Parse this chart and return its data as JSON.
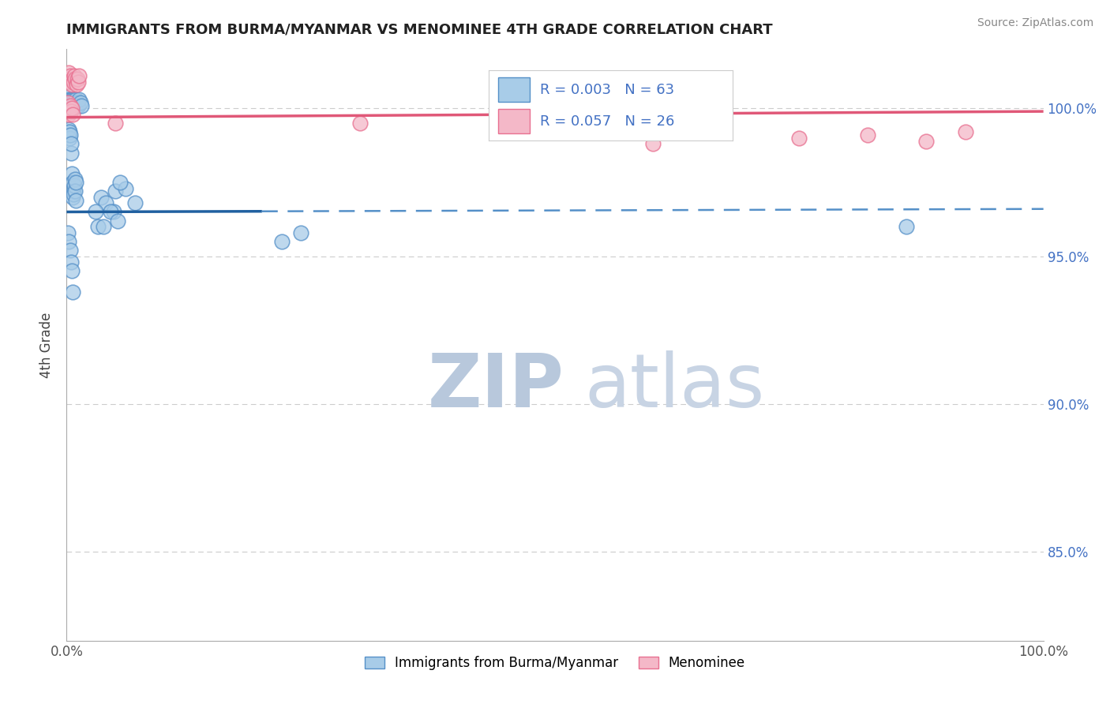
{
  "title": "IMMIGRANTS FROM BURMA/MYANMAR VS MENOMINEE 4TH GRADE CORRELATION CHART",
  "source": "Source: ZipAtlas.com",
  "ylabel": "4th Grade",
  "xlim": [
    0.0,
    100.0
  ],
  "ylim": [
    82.0,
    102.0
  ],
  "yticks": [
    85.0,
    90.0,
    95.0,
    100.0
  ],
  "blue_R": 0.003,
  "blue_N": 63,
  "pink_R": 0.057,
  "pink_N": 26,
  "blue_color": "#a8cce8",
  "pink_color": "#f4b8c8",
  "blue_edge_color": "#5590c8",
  "pink_edge_color": "#e87090",
  "blue_line_color": "#2060a0",
  "pink_line_color": "#e05878",
  "grid_color": "#cccccc",
  "background_color": "#ffffff",
  "blue_scatter_x": [
    0.1,
    0.15,
    0.2,
    0.25,
    0.3,
    0.35,
    0.4,
    0.45,
    0.5,
    0.55,
    0.6,
    0.65,
    0.7,
    0.75,
    0.8,
    0.85,
    0.9,
    0.95,
    1.0,
    1.1,
    1.2,
    1.3,
    1.4,
    1.5,
    0.12,
    0.18,
    0.22,
    0.28,
    0.32,
    0.38,
    0.42,
    0.48,
    0.52,
    0.58,
    0.62,
    0.68,
    0.72,
    0.78,
    0.82,
    0.88,
    0.92,
    0.98,
    3.5,
    5.0,
    4.0,
    3.0,
    6.0,
    3.2,
    4.8,
    0.15,
    0.25,
    0.35,
    0.45,
    0.55,
    0.65,
    5.5,
    4.5,
    7.0,
    5.2,
    3.8,
    22.0,
    24.0,
    86.0
  ],
  "blue_scatter_y": [
    100.2,
    100.3,
    100.4,
    100.1,
    100.3,
    100.2,
    100.1,
    100.3,
    100.2,
    100.1,
    100.2,
    100.3,
    100.1,
    100.2,
    100.3,
    100.1,
    100.2,
    100.3,
    100.1,
    100.2,
    100.1,
    100.3,
    100.2,
    100.1,
    99.2,
    99.1,
    99.3,
    99.0,
    99.2,
    99.1,
    98.5,
    98.8,
    97.8,
    97.5,
    97.0,
    97.2,
    97.1,
    97.4,
    97.6,
    97.2,
    96.9,
    97.5,
    97.0,
    97.2,
    96.8,
    96.5,
    97.3,
    96.0,
    96.5,
    95.8,
    95.5,
    95.2,
    94.8,
    94.5,
    93.8,
    97.5,
    96.5,
    96.8,
    96.2,
    96.0,
    95.5,
    95.8,
    96.0
  ],
  "pink_scatter_x": [
    0.1,
    0.2,
    0.3,
    0.4,
    0.5,
    0.6,
    0.7,
    0.8,
    0.9,
    1.0,
    1.1,
    1.2,
    1.3,
    0.15,
    0.25,
    0.35,
    0.45,
    0.55,
    0.65,
    5.0,
    30.0,
    60.0,
    75.0,
    82.0,
    88.0,
    92.0
  ],
  "pink_scatter_y": [
    101.0,
    101.2,
    100.9,
    101.1,
    100.8,
    101.0,
    100.9,
    101.1,
    101.0,
    100.8,
    101.0,
    100.9,
    101.1,
    100.2,
    99.8,
    100.1,
    99.9,
    100.0,
    99.8,
    99.5,
    99.5,
    98.8,
    99.0,
    99.1,
    98.9,
    99.2
  ],
  "legend_label_blue": "Immigrants from Burma/Myanmar",
  "legend_label_pink": "Menominee",
  "watermark_zip": "ZIP",
  "watermark_atlas": "atlas",
  "watermark_color": "#d8e0ee",
  "blue_trend_solid_end": 20.0,
  "pink_trend_y_start": 99.7,
  "pink_trend_y_end": 99.9,
  "blue_trend_y_start": 96.5,
  "blue_trend_y_end": 96.6,
  "blue_dashed_y": 95.7
}
